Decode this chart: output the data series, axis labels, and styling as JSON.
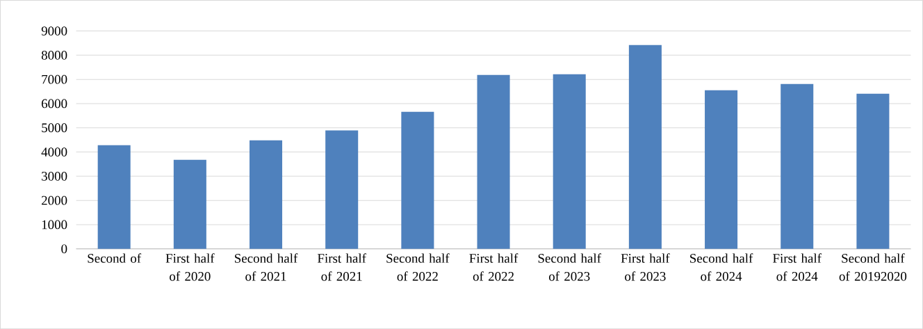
{
  "chart_data": {
    "type": "bar",
    "categories": [
      "Second of",
      "First half of 2020",
      "Second half of 2021",
      "First half of 2021",
      "Second half of 2022",
      "First half of 2022",
      "Second half of 2023",
      "First half of 2023",
      "Second half of 2024",
      "First half of 2024",
      "Second half of 20192020"
    ],
    "values": [
      4280,
      3680,
      4480,
      4890,
      5660,
      7180,
      7210,
      8420,
      6550,
      6810,
      6410
    ],
    "color": "#4f81bd",
    "ylim": [
      0,
      9000
    ],
    "yticks": [
      0,
      1000,
      2000,
      3000,
      4000,
      5000,
      6000,
      7000,
      8000,
      9000
    ],
    "grid": "y"
  }
}
